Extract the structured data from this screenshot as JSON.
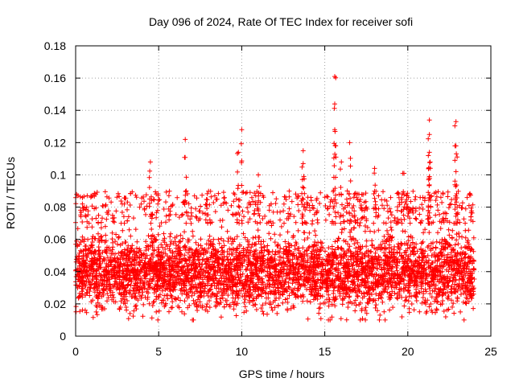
{
  "chart_data": {
    "type": "scatter",
    "title": "Day 096 of 2024, Rate Of TEC Index for receiver sofi",
    "xlabel": "GPS time / hours",
    "ylabel": "ROTI / TECUs",
    "xlim": [
      0,
      25
    ],
    "ylim": [
      0,
      0.18
    ],
    "xticks": [
      0,
      5,
      10,
      15,
      20,
      25
    ],
    "xtick_labels": [
      "0",
      "5",
      "10",
      "15",
      "20",
      "25"
    ],
    "yticks": [
      0,
      0.02,
      0.04,
      0.06,
      0.08,
      0.1,
      0.12,
      0.14,
      0.16,
      0.18
    ],
    "ytick_labels": [
      "0",
      "0.02",
      "0.04",
      "0.06",
      "0.08",
      "0.1",
      "0.12",
      "0.14",
      "0.16",
      "0.18"
    ],
    "grid": true,
    "marker": "+",
    "series": [
      {
        "name": "ROTI",
        "color": "#ff0000",
        "bulk": {
          "x_range": [
            0,
            24
          ],
          "y_min": 0.01,
          "y_max": 0.07,
          "y_center": 0.04
        },
        "peaks": [
          {
            "x": 4.5,
            "y": 0.108
          },
          {
            "x": 6.6,
            "y": 0.122
          },
          {
            "x": 9.8,
            "y": 0.114
          },
          {
            "x": 10.0,
            "y": 0.128
          },
          {
            "x": 11.0,
            "y": 0.1
          },
          {
            "x": 13.7,
            "y": 0.115
          },
          {
            "x": 13.7,
            "y": 0.107
          },
          {
            "x": 15.6,
            "y": 0.161
          },
          {
            "x": 15.6,
            "y": 0.144
          },
          {
            "x": 15.6,
            "y": 0.128
          },
          {
            "x": 16.0,
            "y": 0.108
          },
          {
            "x": 16.5,
            "y": 0.12
          },
          {
            "x": 18.0,
            "y": 0.104
          },
          {
            "x": 19.7,
            "y": 0.101
          },
          {
            "x": 21.3,
            "y": 0.134
          },
          {
            "x": 21.3,
            "y": 0.125
          },
          {
            "x": 21.3,
            "y": 0.114
          },
          {
            "x": 21.3,
            "y": 0.099
          },
          {
            "x": 22.9,
            "y": 0.133
          },
          {
            "x": 22.9,
            "y": 0.118
          },
          {
            "x": 22.9,
            "y": 0.102
          }
        ]
      }
    ]
  }
}
